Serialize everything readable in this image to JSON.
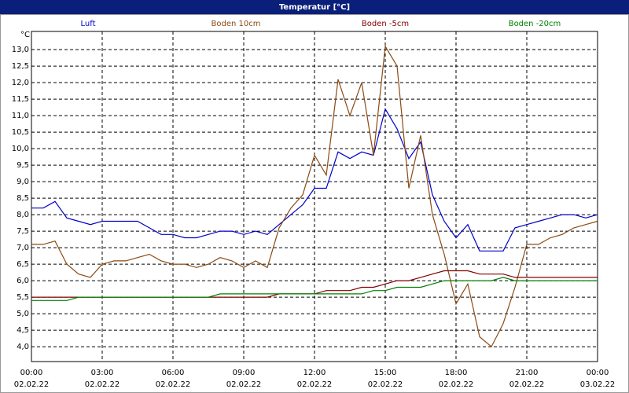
{
  "chart_data": {
    "type": "line",
    "title": "Temperatur [°C]",
    "y_label": "°C",
    "x": [
      0,
      0.5,
      1,
      1.5,
      2,
      2.5,
      3,
      3.5,
      4,
      4.5,
      5,
      5.5,
      6,
      6.5,
      7,
      7.5,
      8,
      8.5,
      9,
      9.5,
      10,
      10.5,
      11,
      11.5,
      12,
      12.5,
      13,
      13.5,
      14,
      14.5,
      15,
      15.5,
      16,
      16.5,
      17,
      17.5,
      18,
      18.5,
      19,
      19.5,
      20,
      20.5,
      21,
      21.5,
      22,
      22.5,
      23,
      23.5,
      24
    ],
    "series": [
      {
        "name": "Luft",
        "color": "#0000cc",
        "values": [
          8.2,
          8.2,
          8.4,
          7.9,
          7.8,
          7.7,
          7.8,
          7.8,
          7.8,
          7.8,
          7.6,
          7.4,
          7.4,
          7.3,
          7.3,
          7.4,
          7.5,
          7.5,
          7.4,
          7.5,
          7.4,
          7.7,
          8.0,
          8.3,
          8.8,
          8.8,
          9.9,
          9.7,
          9.9,
          9.8,
          11.2,
          10.6,
          9.7,
          10.2,
          8.6,
          7.8,
          7.3,
          7.7,
          6.9,
          6.9,
          6.9,
          7.6,
          7.7,
          7.8,
          7.9,
          8.0,
          8.0,
          7.9,
          8.0
        ]
      },
      {
        "name": "Boden 10cm",
        "color": "#8b4a14",
        "values": [
          7.1,
          7.1,
          7.2,
          6.5,
          6.2,
          6.1,
          6.5,
          6.6,
          6.6,
          6.7,
          6.8,
          6.6,
          6.5,
          6.5,
          6.4,
          6.5,
          6.7,
          6.6,
          6.4,
          6.6,
          6.4,
          7.6,
          8.2,
          8.6,
          9.8,
          9.2,
          12.1,
          11.0,
          12.0,
          9.8,
          13.1,
          12.5,
          8.8,
          10.4,
          8.0,
          6.8,
          5.3,
          5.9,
          4.3,
          4.0,
          4.7,
          5.8,
          7.1,
          7.1,
          7.3,
          7.4,
          7.6,
          7.7,
          7.8
        ]
      },
      {
        "name": "Boden -5cm",
        "color": "#800000",
        "values": [
          5.5,
          5.5,
          5.5,
          5.5,
          5.5,
          5.5,
          5.5,
          5.5,
          5.5,
          5.5,
          5.5,
          5.5,
          5.5,
          5.5,
          5.5,
          5.5,
          5.5,
          5.5,
          5.5,
          5.5,
          5.5,
          5.6,
          5.6,
          5.6,
          5.6,
          5.7,
          5.7,
          5.7,
          5.8,
          5.8,
          5.9,
          6.0,
          6.0,
          6.1,
          6.2,
          6.3,
          6.3,
          6.3,
          6.2,
          6.2,
          6.2,
          6.1,
          6.1,
          6.1,
          6.1,
          6.1,
          6.1,
          6.1,
          6.1
        ]
      },
      {
        "name": "Boden -20cm",
        "color": "#008000",
        "values": [
          5.4,
          5.4,
          5.4,
          5.4,
          5.5,
          5.5,
          5.5,
          5.5,
          5.5,
          5.5,
          5.5,
          5.5,
          5.5,
          5.5,
          5.5,
          5.5,
          5.6,
          5.6,
          5.6,
          5.6,
          5.6,
          5.6,
          5.6,
          5.6,
          5.6,
          5.6,
          5.6,
          5.6,
          5.6,
          5.7,
          5.7,
          5.8,
          5.8,
          5.8,
          5.9,
          6.0,
          6.0,
          6.0,
          6.0,
          6.0,
          6.1,
          6.0,
          6.0,
          6.0,
          6.0,
          6.0,
          6.0,
          6.0,
          6.0
        ]
      }
    ],
    "xlim": [
      0,
      24
    ],
    "xticks": [
      {
        "value": 0,
        "label": "00:00"
      },
      {
        "value": 3,
        "label": "03:00"
      },
      {
        "value": 6,
        "label": "06:00"
      },
      {
        "value": 9,
        "label": "09:00"
      },
      {
        "value": 12,
        "label": "12:00"
      },
      {
        "value": 15,
        "label": "15:00"
      },
      {
        "value": 18,
        "label": "18:00"
      },
      {
        "value": 21,
        "label": "21:00"
      },
      {
        "value": 24,
        "label": "00:00"
      }
    ],
    "xtick_dates": [
      "02.02.22",
      "02.02.22",
      "02.02.22",
      "02.02.22",
      "02.02.22",
      "02.02.22",
      "02.02.22",
      "02.02.22",
      "03.02.22"
    ],
    "ylim": [
      3.55,
      13.55
    ],
    "yticks": [
      {
        "value": 4,
        "label": "4,0"
      },
      {
        "value": 4.5,
        "label": "4,5"
      },
      {
        "value": 5,
        "label": "5,0"
      },
      {
        "value": 5.5,
        "label": "5,5"
      },
      {
        "value": 6,
        "label": "6,0"
      },
      {
        "value": 6.5,
        "label": "6,5"
      },
      {
        "value": 7,
        "label": "7,0"
      },
      {
        "value": 7.5,
        "label": "7,5"
      },
      {
        "value": 8,
        "label": "8,0"
      },
      {
        "value": 8.5,
        "label": "8,5"
      },
      {
        "value": 9,
        "label": "9,0"
      },
      {
        "value": 9.5,
        "label": "9,5"
      },
      {
        "value": 10,
        "label": "10,0"
      },
      {
        "value": 10.5,
        "label": "10,5"
      },
      {
        "value": 11,
        "label": "11,0"
      },
      {
        "value": 11.5,
        "label": "11,5"
      },
      {
        "value": 12,
        "label": "12,0"
      },
      {
        "value": 12.5,
        "label": "12,5"
      },
      {
        "value": 13,
        "label": "13,0"
      }
    ],
    "grid": true
  }
}
